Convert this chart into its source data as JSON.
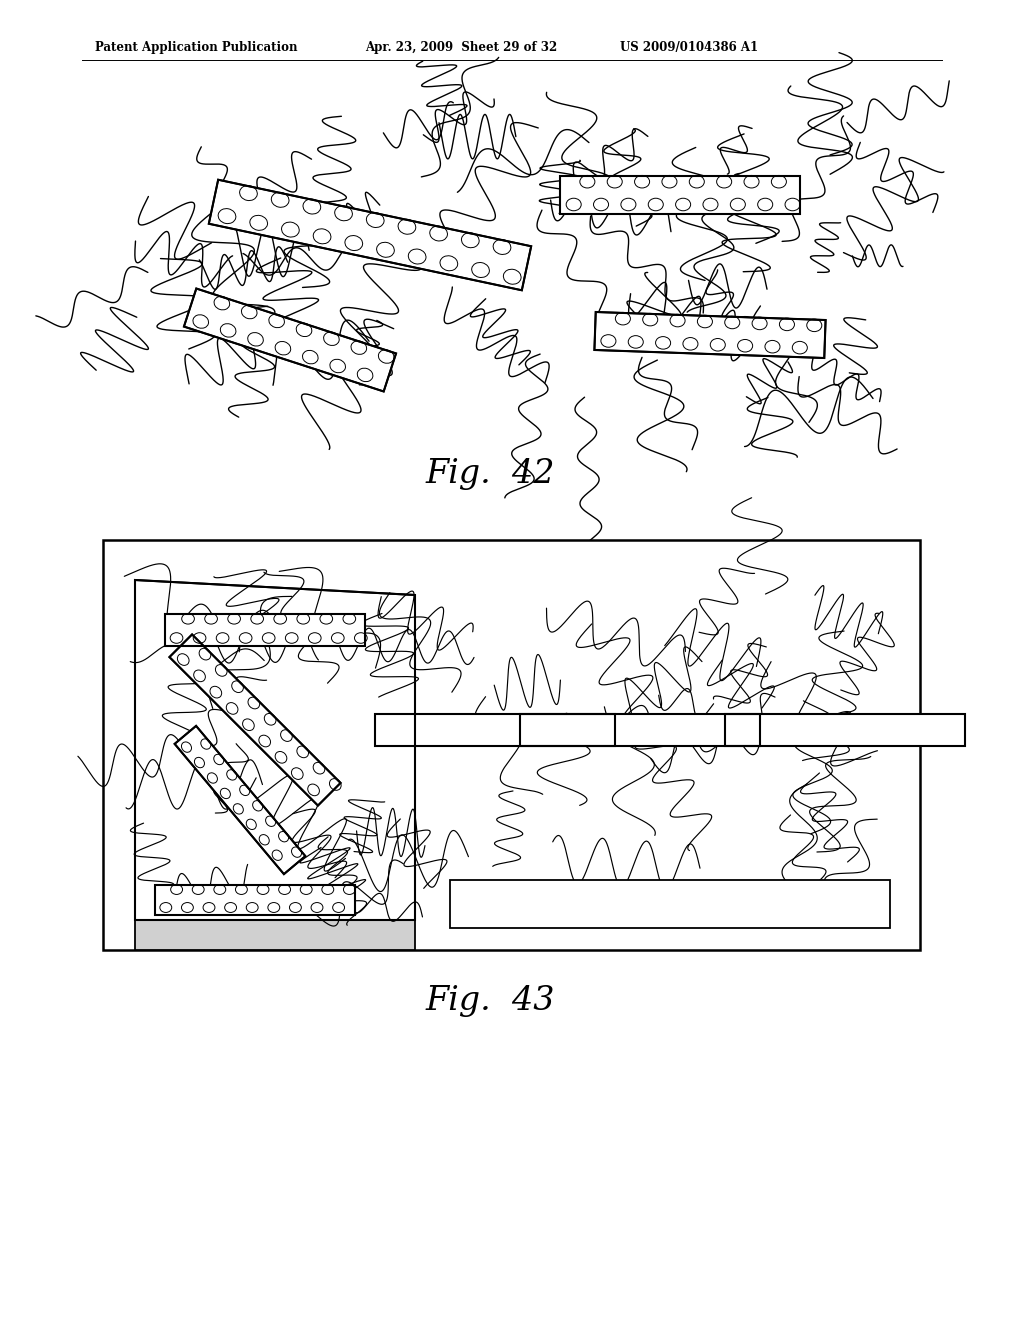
{
  "bg_color": "#ffffff",
  "header_left": "Patent Application Publication",
  "header_mid": "Apr. 23, 2009  Sheet 29 of 32",
  "header_right": "US 2009/0104386 A1",
  "fig42_label": "Fig.  42",
  "fig43_label": "Fig.  43"
}
